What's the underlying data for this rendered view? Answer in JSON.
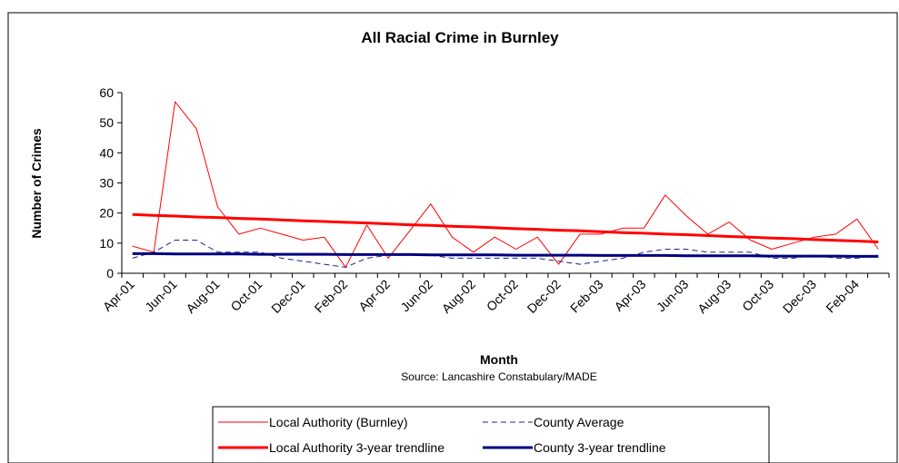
{
  "chart_data": {
    "type": "line",
    "title": "All Racial Crime in Burnley",
    "xlabel": "Month",
    "ylabel": "Number of Crimes",
    "source": "Source: Lancashire Constabulary/MADE",
    "ylim": [
      0,
      60
    ],
    "yticks": [
      0,
      10,
      20,
      30,
      40,
      50,
      60
    ],
    "x": [
      "Apr-01",
      "May-01",
      "Jun-01",
      "Jul-01",
      "Aug-01",
      "Sep-01",
      "Oct-01",
      "Nov-01",
      "Dec-01",
      "Jan-02",
      "Feb-02",
      "Mar-02",
      "Apr-02",
      "May-02",
      "Jun-02",
      "Jul-02",
      "Aug-02",
      "Sep-02",
      "Oct-02",
      "Nov-02",
      "Dec-02",
      "Jan-03",
      "Feb-03",
      "Mar-03",
      "Apr-03",
      "May-03",
      "Jun-03",
      "Jul-03",
      "Aug-03",
      "Sep-03",
      "Oct-03",
      "Nov-03",
      "Dec-03",
      "Jan-04",
      "Feb-04",
      "Mar-04"
    ],
    "xtick_labels": [
      "Apr-01",
      "Jun-01",
      "Aug-01",
      "Oct-01",
      "Dec-01",
      "Feb-02",
      "Apr-02",
      "Jun-02",
      "Aug-02",
      "Oct-02",
      "Dec-02",
      "Feb-03",
      "Apr-03",
      "Jun-03",
      "Aug-03",
      "Oct-03",
      "Dec-03",
      "Feb-04"
    ],
    "grid": false,
    "legend_position": "bottom",
    "series": [
      {
        "name": "Local Authority (Burnley)",
        "color": "#ff0000",
        "style": "thin",
        "values": [
          9,
          7,
          57,
          48,
          22,
          13,
          15,
          13,
          11,
          12,
          2,
          16,
          5,
          14,
          23,
          12,
          7,
          12,
          8,
          12,
          3,
          13,
          13,
          15,
          15,
          26,
          19,
          13,
          17,
          11,
          8,
          10,
          12,
          13,
          18,
          8
        ]
      },
      {
        "name": "County Average",
        "color": "#1f1f8f",
        "style": "dashed",
        "values": [
          5,
          7,
          11,
          11,
          7,
          7,
          7,
          5,
          4,
          3,
          2,
          5,
          6,
          6,
          6,
          5,
          5,
          5,
          5,
          5,
          4,
          3,
          4,
          5,
          7,
          8,
          8,
          7,
          7,
          7,
          5,
          5,
          6,
          5,
          5,
          6
        ]
      },
      {
        "name": "Local Authority 3-year trendline",
        "color": "#ff0000",
        "style": "thick",
        "values": [
          19.5,
          19.2,
          19.0,
          18.7,
          18.5,
          18.2,
          18.0,
          17.7,
          17.4,
          17.2,
          16.9,
          16.7,
          16.4,
          16.1,
          15.9,
          15.6,
          15.4,
          15.1,
          14.8,
          14.6,
          14.3,
          14.1,
          13.8,
          13.5,
          13.3,
          13.0,
          12.8,
          12.5,
          12.2,
          12.0,
          11.7,
          11.5,
          11.2,
          10.9,
          10.7,
          10.4
        ]
      },
      {
        "name": "County 3-year trendline",
        "color": "#00007f",
        "style": "thick",
        "values": [
          6.5,
          6.5,
          6.4,
          6.4,
          6.4,
          6.4,
          6.3,
          6.3,
          6.3,
          6.3,
          6.2,
          6.2,
          6.2,
          6.2,
          6.1,
          6.1,
          6.1,
          6.1,
          6.0,
          6.0,
          6.0,
          6.0,
          5.9,
          5.9,
          5.9,
          5.9,
          5.8,
          5.8,
          5.8,
          5.8,
          5.7,
          5.7,
          5.7,
          5.7,
          5.6,
          5.6
        ]
      }
    ]
  }
}
